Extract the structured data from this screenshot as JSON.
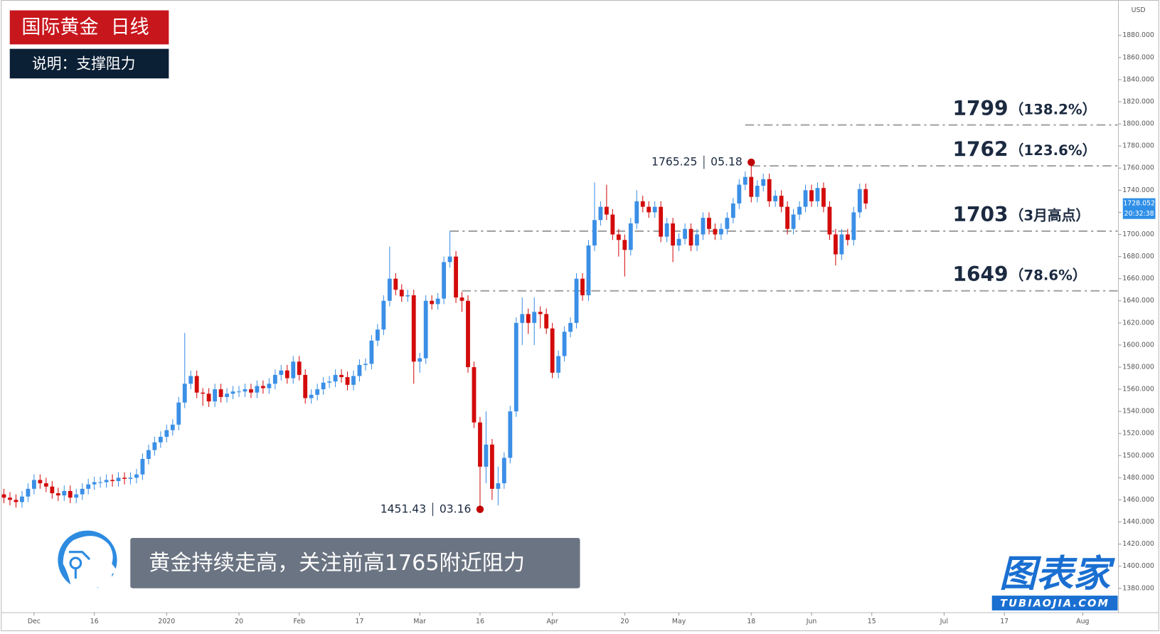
{
  "header": {
    "title": "国际黄金  日线",
    "subtitle": "说明：支撑阻力"
  },
  "banner": "黄金持续走高，关注前高1765附近阻力",
  "logo": {
    "name": "图表家",
    "site": "TUBIAOJIA.COM"
  },
  "chart_data": {
    "type": "candlestick",
    "currency": "USD",
    "up_color": "#3b8fe6",
    "down_color": "#d30b0b",
    "open": [
      1465,
      1462,
      1460,
      1458,
      1463,
      1470,
      1478,
      1475,
      1472,
      1466,
      1464,
      1468,
      1462,
      1465,
      1470,
      1474,
      1476,
      1476,
      1478,
      1477,
      1480,
      1479,
      1480,
      1483,
      1497,
      1505,
      1512,
      1517,
      1523,
      1528,
      1548,
      1565,
      1572,
      1557,
      1556,
      1549,
      1560,
      1553,
      1556,
      1558,
      1558,
      1560,
      1557,
      1563,
      1561,
      1565,
      1573,
      1577,
      1570,
      1585,
      1573,
      1552,
      1555,
      1560,
      1566,
      1567,
      1573,
      1571,
      1564,
      1572,
      1582,
      1583,
      1604,
      1614,
      1640,
      1660,
      1650,
      1644,
      1645,
      1585,
      1588,
      1640,
      1637,
      1642,
      1675,
      1680,
      1643,
      1640,
      1580,
      1530,
      1490,
      1510,
      1470,
      1475,
      1498,
      1540,
      1620,
      1628,
      1620,
      1630,
      1628,
      1615,
      1575,
      1590,
      1612,
      1620,
      1660,
      1645,
      1690,
      1713,
      1725,
      1718,
      1700,
      1695,
      1686,
      1710,
      1730,
      1725,
      1720,
      1725,
      1698,
      1710,
      1690,
      1696,
      1705,
      1690,
      1700,
      1715,
      1705,
      1700,
      1705,
      1715,
      1728,
      1745,
      1752,
      1734,
      1744,
      1750,
      1730,
      1735,
      1725,
      1705,
      1718,
      1725,
      1740,
      1730,
      1742,
      1725,
      1700,
      1682,
      1700,
      1695,
      1720,
      1741
    ],
    "high": [
      1470,
      1467,
      1465,
      1468,
      1475,
      1483,
      1483,
      1480,
      1477,
      1471,
      1473,
      1473,
      1470,
      1475,
      1479,
      1481,
      1481,
      1483,
      1483,
      1485,
      1485,
      1485,
      1488,
      1502,
      1510,
      1517,
      1522,
      1528,
      1533,
      1553,
      1611,
      1577,
      1577,
      1561,
      1561,
      1565,
      1565,
      1561,
      1563,
      1563,
      1565,
      1565,
      1568,
      1568,
      1570,
      1578,
      1582,
      1582,
      1590,
      1590,
      1578,
      1560,
      1565,
      1571,
      1572,
      1578,
      1578,
      1576,
      1577,
      1587,
      1588,
      1609,
      1619,
      1645,
      1689,
      1665,
      1655,
      1650,
      1650,
      1593,
      1645,
      1645,
      1647,
      1680,
      1703,
      1685,
      1648,
      1645,
      1585,
      1535,
      1540,
      1515,
      1490,
      1503,
      1545,
      1625,
      1643,
      1633,
      1643,
      1635,
      1633,
      1620,
      1595,
      1617,
      1625,
      1665,
      1665,
      1695,
      1747,
      1730,
      1745,
      1723,
      1705,
      1700,
      1715,
      1740,
      1735,
      1730,
      1730,
      1730,
      1715,
      1715,
      1701,
      1710,
      1710,
      1705,
      1720,
      1720,
      1710,
      1710,
      1720,
      1733,
      1750,
      1757,
      1765.25,
      1749,
      1755,
      1755,
      1740,
      1740,
      1730,
      1723,
      1730,
      1745,
      1745,
      1747,
      1747,
      1730,
      1705,
      1705,
      1705,
      1725,
      1746,
      1746
    ],
    "low": [
      1457,
      1455,
      1453,
      1453,
      1458,
      1465,
      1470,
      1467,
      1461,
      1459,
      1459,
      1457,
      1457,
      1460,
      1465,
      1469,
      1471,
      1471,
      1472,
      1472,
      1474,
      1474,
      1475,
      1478,
      1492,
      1500,
      1507,
      1512,
      1518,
      1523,
      1543,
      1560,
      1552,
      1545,
      1544,
      1544,
      1548,
      1548,
      1551,
      1553,
      1553,
      1552,
      1552,
      1556,
      1556,
      1560,
      1568,
      1565,
      1565,
      1568,
      1547,
      1547,
      1550,
      1555,
      1561,
      1562,
      1566,
      1559,
      1559,
      1567,
      1577,
      1578,
      1599,
      1609,
      1635,
      1645,
      1639,
      1639,
      1565,
      1575,
      1583,
      1632,
      1632,
      1637,
      1670,
      1638,
      1630,
      1575,
      1525,
      1451.43,
      1475,
      1460,
      1455,
      1470,
      1493,
      1535,
      1600,
      1610,
      1600,
      1615,
      1610,
      1570,
      1570,
      1585,
      1607,
      1615,
      1640,
      1640,
      1685,
      1708,
      1713,
      1695,
      1680,
      1662,
      1681,
      1705,
      1720,
      1715,
      1715,
      1693,
      1693,
      1675,
      1685,
      1691,
      1685,
      1685,
      1695,
      1700,
      1695,
      1695,
      1700,
      1710,
      1723,
      1740,
      1729,
      1729,
      1739,
      1725,
      1725,
      1720,
      1700,
      1700,
      1713,
      1720,
      1725,
      1725,
      1720,
      1695,
      1672,
      1677,
      1690,
      1690,
      1715,
      1723
    ],
    "close": [
      1462,
      1460,
      1458,
      1463,
      1470,
      1478,
      1475,
      1472,
      1466,
      1464,
      1468,
      1462,
      1465,
      1470,
      1474,
      1476,
      1476,
      1478,
      1477,
      1480,
      1479,
      1480,
      1483,
      1497,
      1505,
      1512,
      1517,
      1523,
      1528,
      1548,
      1565,
      1572,
      1557,
      1556,
      1549,
      1560,
      1553,
      1556,
      1558,
      1558,
      1560,
      1557,
      1563,
      1561,
      1565,
      1573,
      1577,
      1570,
      1585,
      1573,
      1552,
      1555,
      1560,
      1566,
      1567,
      1573,
      1571,
      1564,
      1572,
      1582,
      1583,
      1604,
      1614,
      1640,
      1660,
      1650,
      1644,
      1645,
      1585,
      1588,
      1640,
      1637,
      1642,
      1675,
      1680,
      1643,
      1640,
      1580,
      1530,
      1490,
      1510,
      1470,
      1475,
      1498,
      1540,
      1620,
      1628,
      1620,
      1630,
      1628,
      1615,
      1575,
      1590,
      1612,
      1620,
      1660,
      1645,
      1690,
      1713,
      1725,
      1718,
      1700,
      1695,
      1686,
      1710,
      1730,
      1725,
      1720,
      1725,
      1698,
      1710,
      1690,
      1696,
      1705,
      1690,
      1700,
      1715,
      1705,
      1700,
      1705,
      1715,
      1728,
      1745,
      1752,
      1734,
      1744,
      1750,
      1730,
      1735,
      1725,
      1705,
      1718,
      1725,
      1740,
      1730,
      1742,
      1725,
      1700,
      1682,
      1700,
      1695,
      1720,
      1741,
      1728
    ],
    "last": 1728.052,
    "countdown": "20:32:38",
    "xlim": [
      -0.5,
      184.8
    ],
    "xticks": [
      {
        "value": 5,
        "label": "Dec"
      },
      {
        "value": 15,
        "label": "16"
      },
      {
        "value": 27,
        "label": "2020"
      },
      {
        "value": 39,
        "label": "20"
      },
      {
        "value": 49,
        "label": "Feb"
      },
      {
        "value": 59,
        "label": "17"
      },
      {
        "value": 69,
        "label": "Mar"
      },
      {
        "value": 79,
        "label": "16"
      },
      {
        "value": 91,
        "label": "Apr"
      },
      {
        "value": 103,
        "label": "20"
      },
      {
        "value": 112,
        "label": "May"
      },
      {
        "value": 124,
        "label": "18"
      },
      {
        "value": 134,
        "label": "Jun"
      },
      {
        "value": 144,
        "label": "15"
      },
      {
        "value": 156,
        "label": "Jul"
      },
      {
        "value": 166,
        "label": "17"
      },
      {
        "value": 179,
        "label": "Aug"
      }
    ],
    "ylim": [
      1358,
      1912
    ],
    "yticks": [
      {
        "value": 1380,
        "label": "1380.000"
      },
      {
        "value": 1400,
        "label": "1400.000"
      },
      {
        "value": 1420,
        "label": "1420.000"
      },
      {
        "value": 1440,
        "label": "1440.000"
      },
      {
        "value": 1460,
        "label": "1460.000"
      },
      {
        "value": 1480,
        "label": "1480.000"
      },
      {
        "value": 1500,
        "label": "1500.000"
      },
      {
        "value": 1520,
        "label": "1520.000"
      },
      {
        "value": 1540,
        "label": "1540.000"
      },
      {
        "value": 1560,
        "label": "1560.000"
      },
      {
        "value": 1580,
        "label": "1580.000"
      },
      {
        "value": 1600,
        "label": "1600.000"
      },
      {
        "value": 1620,
        "label": "1620.000"
      },
      {
        "value": 1640,
        "label": "1640.000"
      },
      {
        "value": 1660,
        "label": "1660.000"
      },
      {
        "value": 1680,
        "label": "1680.000"
      },
      {
        "value": 1700,
        "label": "1700.000"
      },
      {
        "value": 1720,
        "label": "1720.000"
      },
      {
        "value": 1740,
        "label": "1740.000"
      },
      {
        "value": 1760,
        "label": "1760.000"
      },
      {
        "value": 1780,
        "label": "1780.000"
      },
      {
        "value": 1800,
        "label": "1800.000"
      },
      {
        "value": 1820,
        "label": "1820.000"
      },
      {
        "value": 1840,
        "label": "1840.000"
      },
      {
        "value": 1860,
        "label": "1860.000"
      },
      {
        "value": 1880,
        "label": "1880.000"
      }
    ],
    "levels": [
      {
        "value": 1799,
        "note": "（138.2%）",
        "from": 123
      },
      {
        "value": 1762,
        "note": "（123.6%）",
        "from": 124
      },
      {
        "value": 1703,
        "note": "（3月高点）",
        "from": 74
      },
      {
        "value": 1649,
        "note": "（78.6%）",
        "from": 76
      }
    ],
    "annotations": [
      {
        "value": 1765.25,
        "date": "05.18",
        "index": 124,
        "at": "high"
      },
      {
        "value": 1451.43,
        "date": "03.16",
        "index": 79,
        "at": "low"
      }
    ]
  }
}
